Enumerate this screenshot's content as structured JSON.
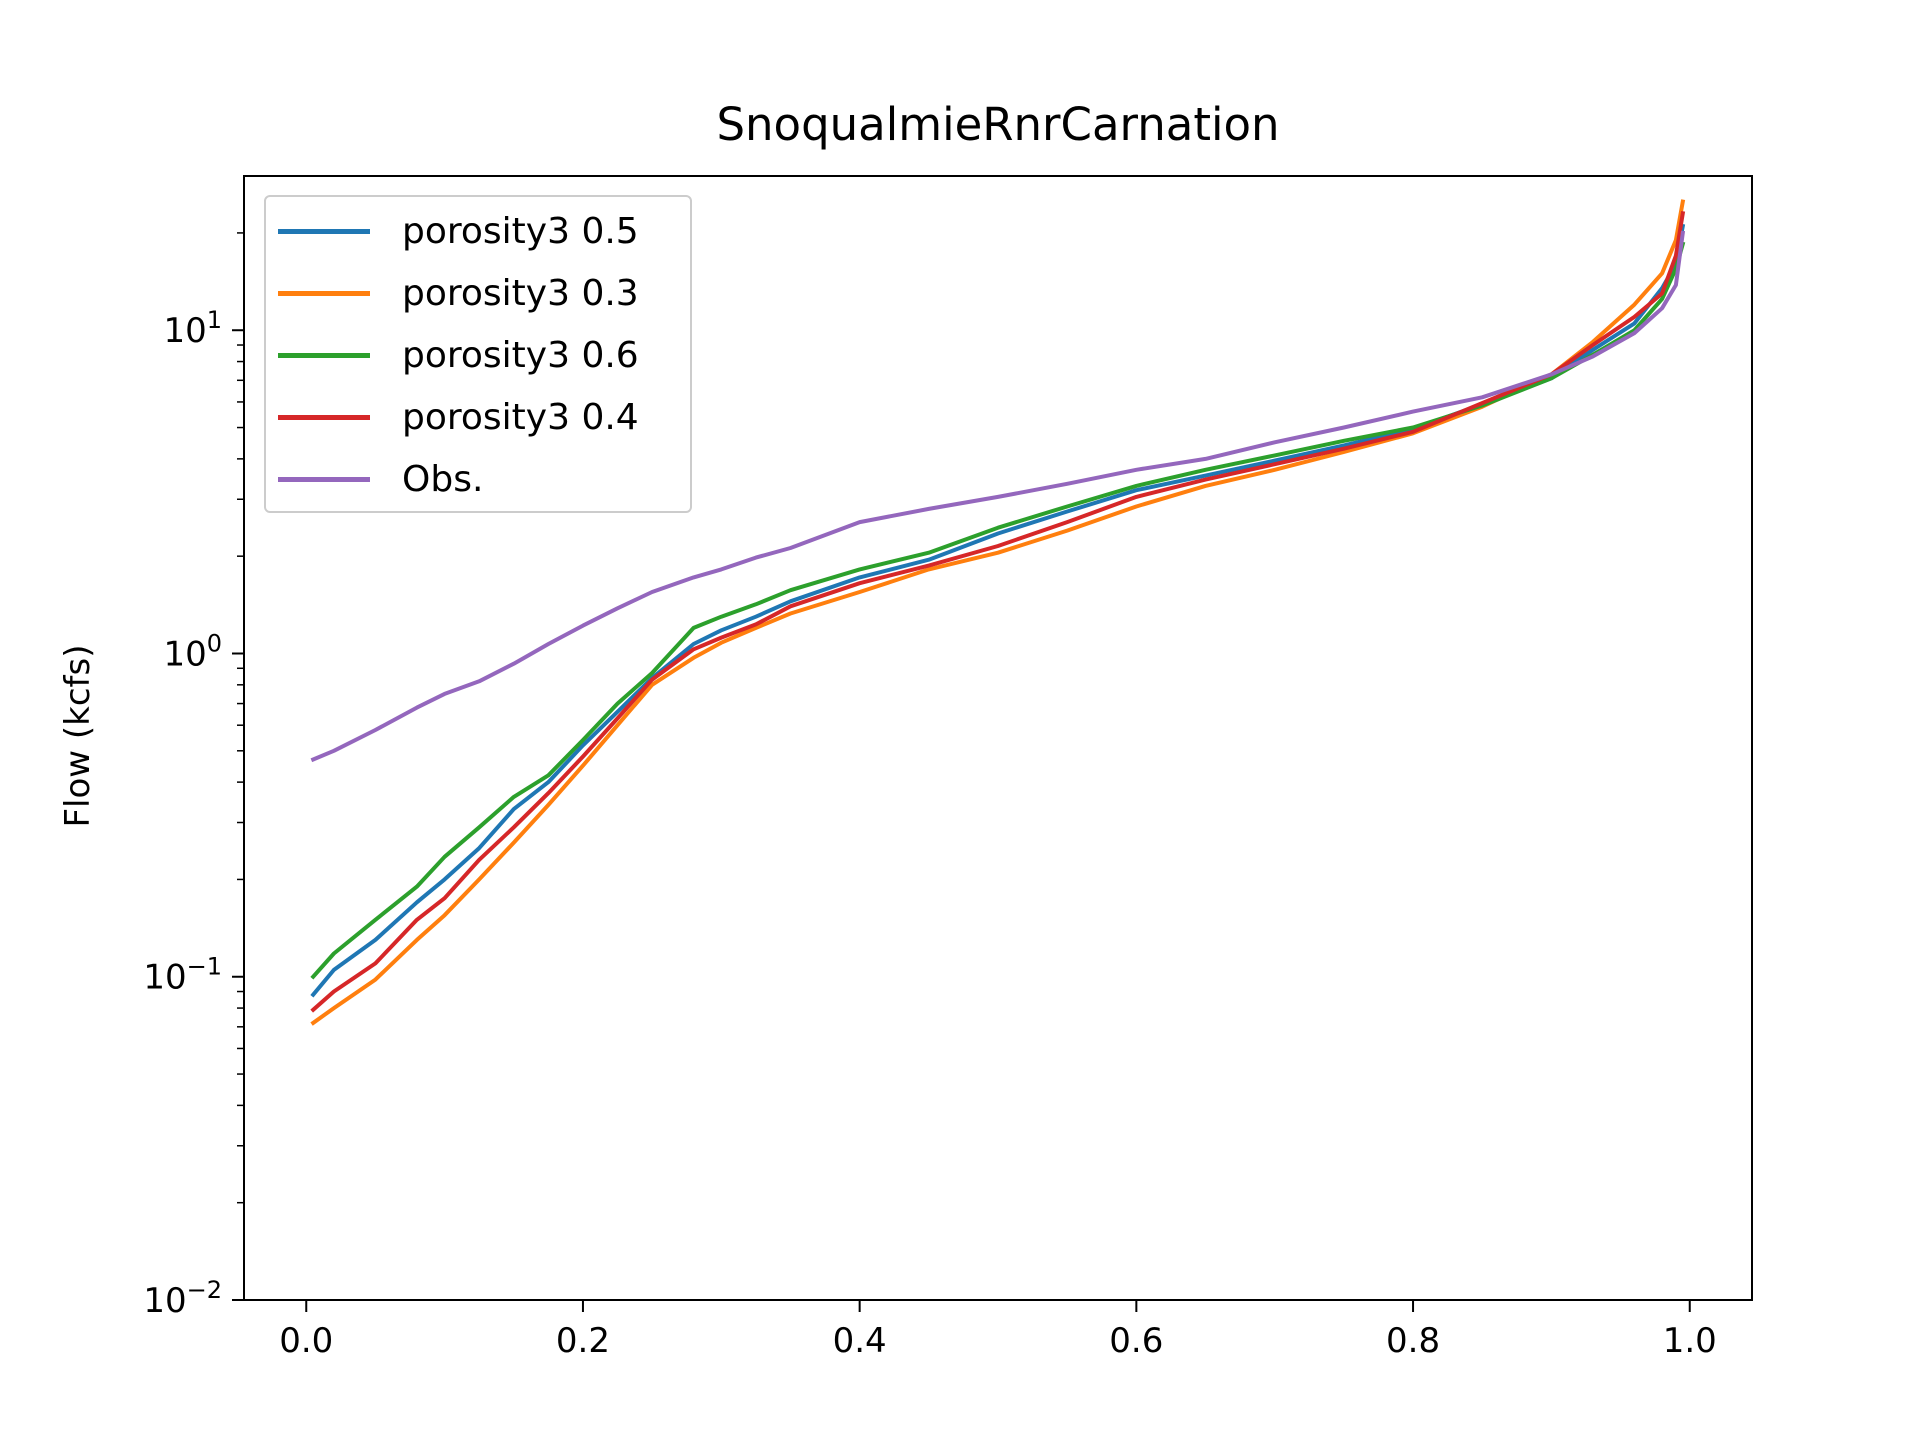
{
  "chart_data": {
    "type": "line",
    "title": "SnoqualmieRnrCarnation",
    "xlabel": "",
    "ylabel": "Flow (kcfs)",
    "yscale": "log",
    "xlim": [
      -0.045,
      1.045
    ],
    "ylim": [
      0.01,
      30
    ],
    "x_ticks": [
      0.0,
      0.2,
      0.4,
      0.6,
      0.8,
      1.0
    ],
    "x_tick_labels": [
      "0.0",
      "0.2",
      "0.4",
      "0.6",
      "0.8",
      "1.0"
    ],
    "y_ticks": [
      0.01,
      0.1,
      1,
      10
    ],
    "y_tick_labels": [
      {
        "base": "10",
        "exp": "−2"
      },
      {
        "base": "10",
        "exp": "−1"
      },
      {
        "base": "10",
        "exp": "0"
      },
      {
        "base": "10",
        "exp": "1"
      }
    ],
    "legend_position": "upper-left",
    "grid": false,
    "x": [
      0.005,
      0.02,
      0.05,
      0.08,
      0.1,
      0.125,
      0.15,
      0.175,
      0.2,
      0.225,
      0.25,
      0.28,
      0.3,
      0.325,
      0.35,
      0.4,
      0.45,
      0.5,
      0.55,
      0.6,
      0.65,
      0.7,
      0.75,
      0.8,
      0.85,
      0.9,
      0.93,
      0.96,
      0.98,
      0.99,
      0.995
    ],
    "series": [
      {
        "name": "porosity3 0.5",
        "color": "#1f77b4",
        "values": [
          0.088,
          0.105,
          0.13,
          0.17,
          0.2,
          0.25,
          0.33,
          0.4,
          0.52,
          0.66,
          0.84,
          1.07,
          1.18,
          1.3,
          1.45,
          1.72,
          1.95,
          2.35,
          2.75,
          3.2,
          3.55,
          3.95,
          4.4,
          4.95,
          5.9,
          7.1,
          8.7,
          10.5,
          13.5,
          16.0,
          21.0
        ]
      },
      {
        "name": "porosity3 0.3",
        "color": "#ff7f0e",
        "values": [
          0.072,
          0.08,
          0.098,
          0.13,
          0.155,
          0.2,
          0.26,
          0.34,
          0.45,
          0.6,
          0.8,
          0.97,
          1.08,
          1.2,
          1.33,
          1.55,
          1.82,
          2.05,
          2.4,
          2.85,
          3.3,
          3.7,
          4.2,
          4.8,
          5.8,
          7.3,
          9.2,
          12.0,
          15.0,
          19.0,
          25.0
        ]
      },
      {
        "name": "porosity3 0.6",
        "color": "#2ca02c",
        "values": [
          0.1,
          0.118,
          0.15,
          0.19,
          0.235,
          0.29,
          0.36,
          0.42,
          0.54,
          0.7,
          0.87,
          1.2,
          1.3,
          1.42,
          1.57,
          1.82,
          2.05,
          2.45,
          2.85,
          3.3,
          3.7,
          4.1,
          4.55,
          5.0,
          5.85,
          7.1,
          8.4,
          10.0,
          12.5,
          15.5,
          18.5
        ]
      },
      {
        "name": "porosity3 0.4",
        "color": "#d62728",
        "values": [
          0.079,
          0.09,
          0.11,
          0.15,
          0.175,
          0.23,
          0.29,
          0.37,
          0.48,
          0.63,
          0.83,
          1.03,
          1.12,
          1.23,
          1.4,
          1.65,
          1.87,
          2.15,
          2.55,
          3.05,
          3.45,
          3.85,
          4.3,
          4.85,
          5.95,
          7.3,
          9.0,
          11.0,
          13.0,
          17.0,
          23.0
        ]
      },
      {
        "name": "Obs.",
        "color": "#9467bd",
        "values": [
          0.47,
          0.5,
          0.58,
          0.68,
          0.75,
          0.82,
          0.93,
          1.07,
          1.22,
          1.38,
          1.55,
          1.72,
          1.82,
          1.98,
          2.12,
          2.55,
          2.8,
          3.05,
          3.35,
          3.7,
          4.0,
          4.5,
          5.0,
          5.6,
          6.2,
          7.3,
          8.3,
          9.8,
          11.7,
          13.8,
          20.0
        ]
      }
    ]
  }
}
